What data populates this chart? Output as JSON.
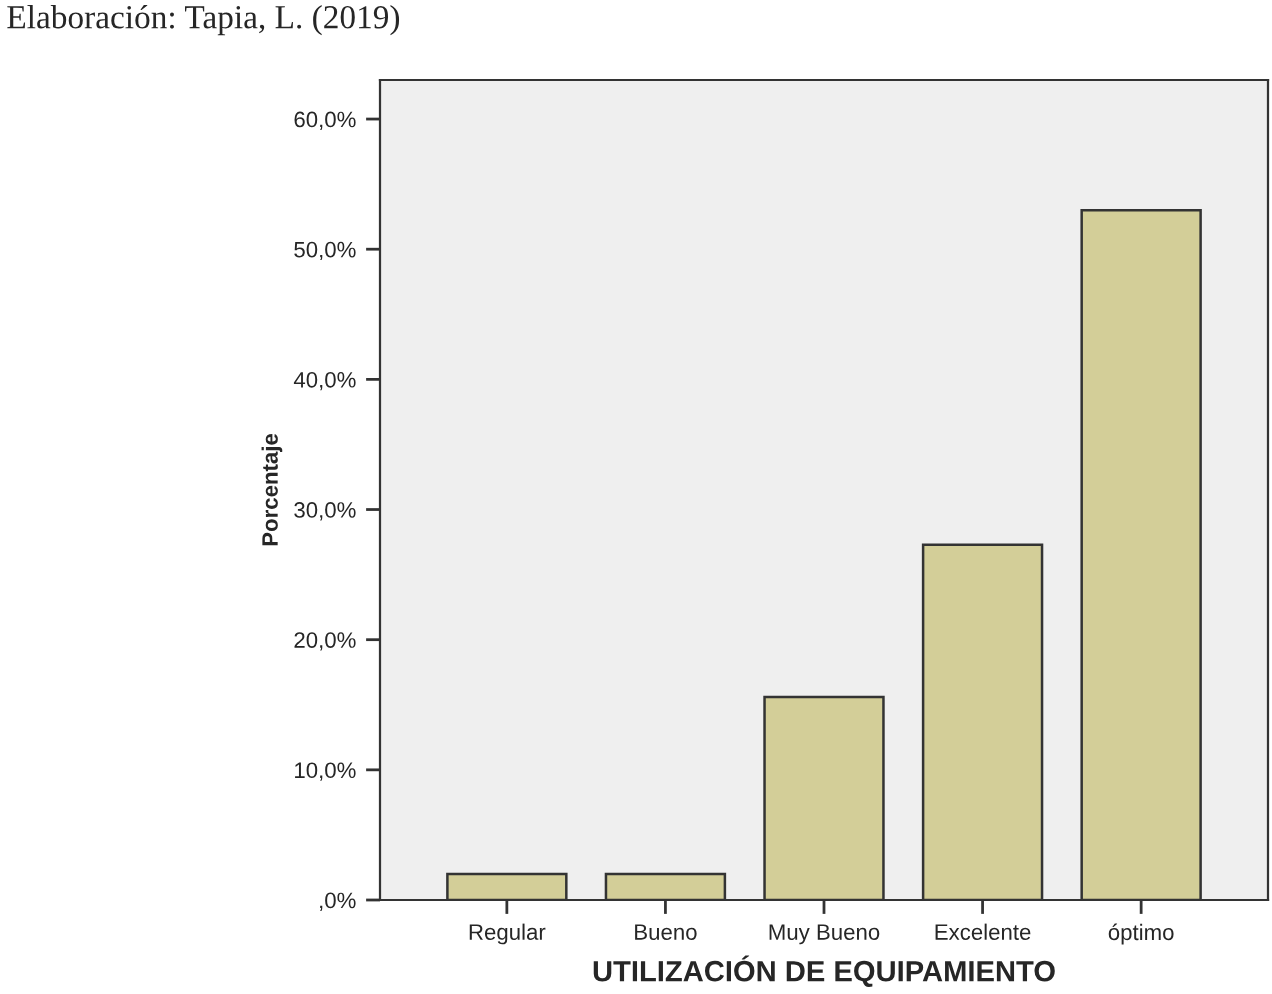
{
  "chart_data": {
    "type": "bar",
    "xlabel": "UTILIZACIÓN DE EQUIPAMIENTO",
    "ylabel": "Porcentaje",
    "annotations": [
      "Elaboración: Tapia, L. (2019)"
    ],
    "categories": [
      "Regular",
      "Bueno",
      "Muy Bueno",
      "Excelente",
      "óptimo"
    ],
    "values": [
      2.0,
      2.0,
      15.6,
      27.3,
      53.0
    ],
    "color": "#d3ce98",
    "ylim": [
      0,
      63
    ],
    "yticks": [
      {
        "value": 0,
        "label": ",0%"
      },
      {
        "value": 10,
        "label": "10,0%"
      },
      {
        "value": 20,
        "label": "20,0%"
      },
      {
        "value": 30,
        "label": "30,0%"
      },
      {
        "value": 40,
        "label": "40,0%"
      },
      {
        "value": 50,
        "label": "50,0%"
      },
      {
        "value": 60,
        "label": "60,0%"
      }
    ],
    "grid": false
  }
}
